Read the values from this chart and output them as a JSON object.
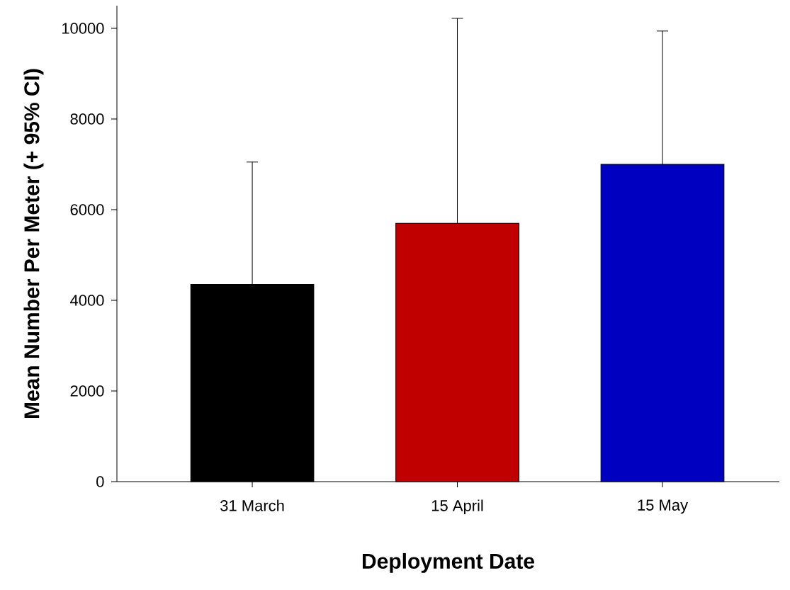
{
  "chart_data": {
    "type": "bar",
    "xlabel": "Deployment Date",
    "ylabel": "Mean Number Per Meter (+ 95% CI)",
    "categories": [
      "31 March",
      "15 April",
      "15 May"
    ],
    "values": [
      4350,
      5700,
      7000
    ],
    "colors": [
      "#000000",
      "#c00000",
      "#0000c0"
    ],
    "errors": [
      [
        4350,
        7050
      ],
      [
        5700,
        10220
      ],
      [
        7000,
        9940
      ]
    ],
    "ylim": [
      0,
      10500
    ],
    "yticks": [
      0,
      2000,
      4000,
      6000,
      8000,
      10000
    ],
    "grid": false
  }
}
